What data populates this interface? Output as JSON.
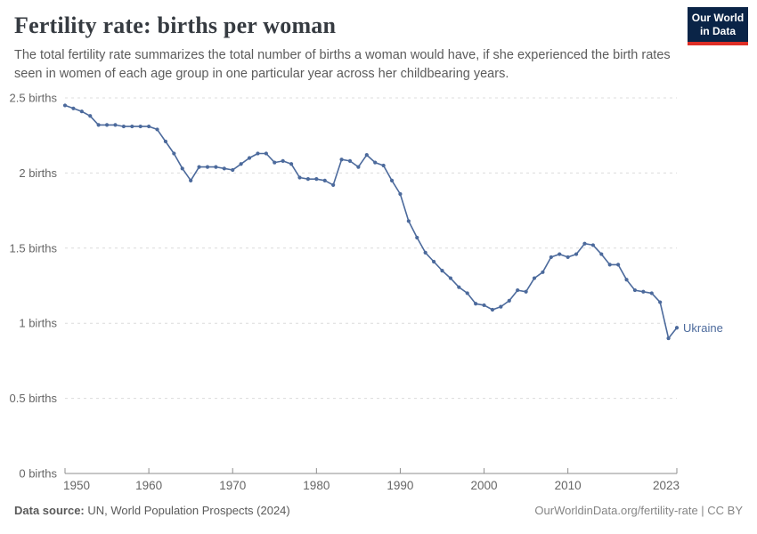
{
  "header": {
    "title": "Fertility rate: births per woman",
    "subtitle": "The total fertility rate summarizes the total number of births a woman would have, if she experienced the birth rates seen in women of each age group in one particular year across her childbearing years.",
    "logo": {
      "line1": "Our World",
      "line2": "in Data"
    }
  },
  "colors": {
    "line": "#4C6A9C",
    "entity_label": "#4C6A9C",
    "grid": "#dcdcdc",
    "axis": "#8e8e8e",
    "tick_label": "#666666",
    "logo_bg": "#0A2447",
    "logo_red": "#DE2E26",
    "title": "#363B41",
    "subtitle": "#5b5b5b"
  },
  "chart_data": {
    "type": "line",
    "title": "Fertility rate: births per woman",
    "entity_label": "Ukraine",
    "xlabel": "",
    "ylabel": "births per woman",
    "xlim": [
      1950,
      2023
    ],
    "ylim": [
      0,
      2.5
    ],
    "grid": "horizontal-dashed",
    "legend_position": "end-of-line",
    "x_ticks": [
      1950,
      1960,
      1970,
      1980,
      1990,
      2000,
      2010,
      2023
    ],
    "y_ticks": [
      {
        "value": 0,
        "label": "0 births"
      },
      {
        "value": 0.5,
        "label": "0.5 births"
      },
      {
        "value": 1,
        "label": "1 births"
      },
      {
        "value": 1.5,
        "label": "1.5 births"
      },
      {
        "value": 2,
        "label": "2 births"
      },
      {
        "value": 2.5,
        "label": "2.5 births"
      }
    ],
    "x": [
      1950,
      1951,
      1952,
      1953,
      1954,
      1955,
      1956,
      1957,
      1958,
      1959,
      1960,
      1961,
      1962,
      1963,
      1964,
      1965,
      1966,
      1967,
      1968,
      1969,
      1970,
      1971,
      1972,
      1973,
      1974,
      1975,
      1976,
      1977,
      1978,
      1979,
      1980,
      1981,
      1982,
      1983,
      1984,
      1985,
      1986,
      1987,
      1988,
      1989,
      1990,
      1991,
      1992,
      1993,
      1994,
      1995,
      1996,
      1997,
      1998,
      1999,
      2000,
      2001,
      2002,
      2003,
      2004,
      2005,
      2006,
      2007,
      2008,
      2009,
      2010,
      2011,
      2012,
      2013,
      2014,
      2015,
      2016,
      2017,
      2018,
      2019,
      2020,
      2021,
      2022,
      2023
    ],
    "series": [
      {
        "name": "Ukraine",
        "values": [
          2.45,
          2.43,
          2.41,
          2.38,
          2.32,
          2.32,
          2.32,
          2.31,
          2.31,
          2.31,
          2.31,
          2.29,
          2.21,
          2.13,
          2.03,
          1.95,
          2.04,
          2.04,
          2.04,
          2.03,
          2.02,
          2.06,
          2.1,
          2.13,
          2.13,
          2.07,
          2.08,
          2.06,
          1.97,
          1.96,
          1.96,
          1.95,
          1.92,
          2.09,
          2.08,
          2.04,
          2.12,
          2.07,
          2.05,
          1.95,
          1.86,
          1.68,
          1.57,
          1.47,
          1.41,
          1.35,
          1.3,
          1.24,
          1.2,
          1.13,
          1.12,
          1.09,
          1.11,
          1.15,
          1.22,
          1.21,
          1.3,
          1.34,
          1.44,
          1.46,
          1.44,
          1.46,
          1.53,
          1.52,
          1.46,
          1.39,
          1.39,
          1.29,
          1.22,
          1.21,
          1.2,
          1.14,
          0.9,
          0.97
        ]
      }
    ]
  },
  "footer": {
    "source_label": "Data source:",
    "source_text": "UN, World Population Prospects (2024)",
    "credit": "OurWorldinData.org/fertility-rate | CC BY"
  }
}
